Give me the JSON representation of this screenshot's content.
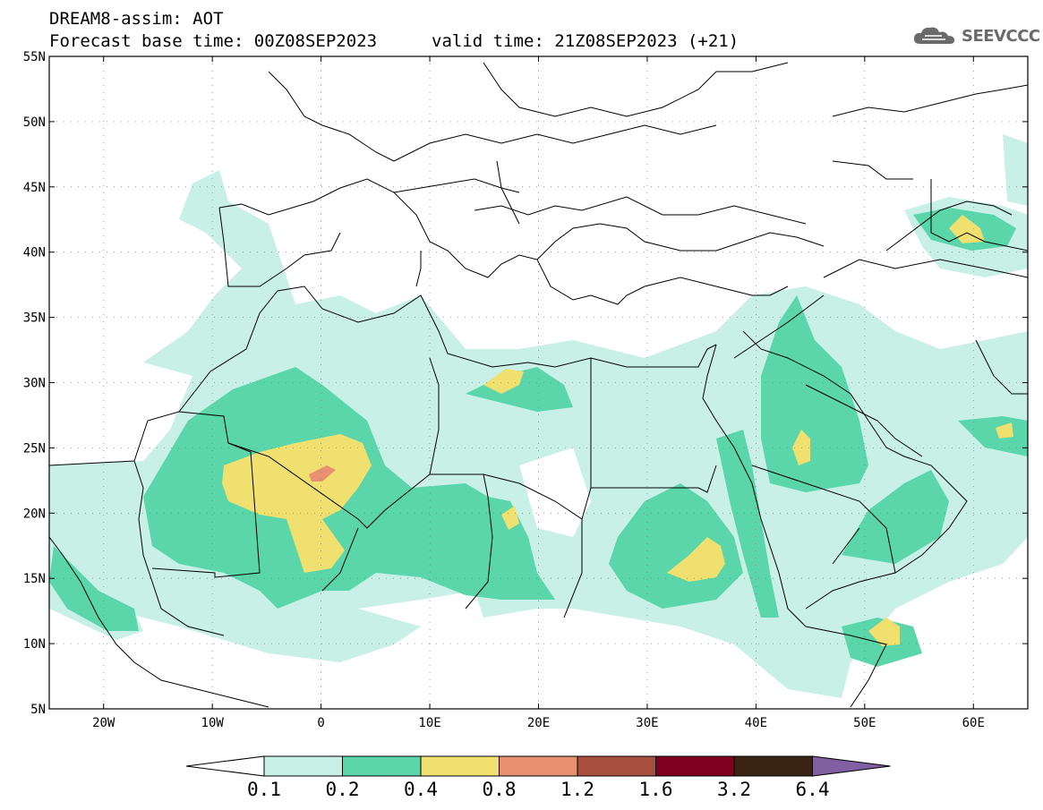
{
  "header": {
    "line1": "DREAM8-assim: AOT",
    "base_time": "Forecast base time: 00Z08SEP2023",
    "valid_time": "valid time: 21Z08SEP2023 (+21)"
  },
  "logo": {
    "text": "SEEVCCC",
    "icon": "cloud-icon"
  },
  "map": {
    "lon_range": [
      -25,
      65
    ],
    "lat_range": [
      5,
      55
    ],
    "lat_ticks": [
      "55N",
      "50N",
      "45N",
      "40N",
      "35N",
      "30N",
      "25N",
      "20N",
      "15N",
      "10N",
      "5N"
    ],
    "lon_ticks": [
      "20W",
      "10W",
      "0",
      "10E",
      "20E",
      "30E",
      "40E",
      "50E",
      "60E"
    ],
    "grid": "dotted"
  },
  "colorbar": {
    "labels": [
      "0.1",
      "0.2",
      "0.4",
      "0.8",
      "1.2",
      "1.6",
      "3.2",
      "6.4"
    ],
    "colors": [
      "#ffffff",
      "#c8f0e6",
      "#5ad6aa",
      "#f0e070",
      "#e89070",
      "#a85040",
      "#800020",
      "#3a2414",
      "#8060a0"
    ]
  }
}
